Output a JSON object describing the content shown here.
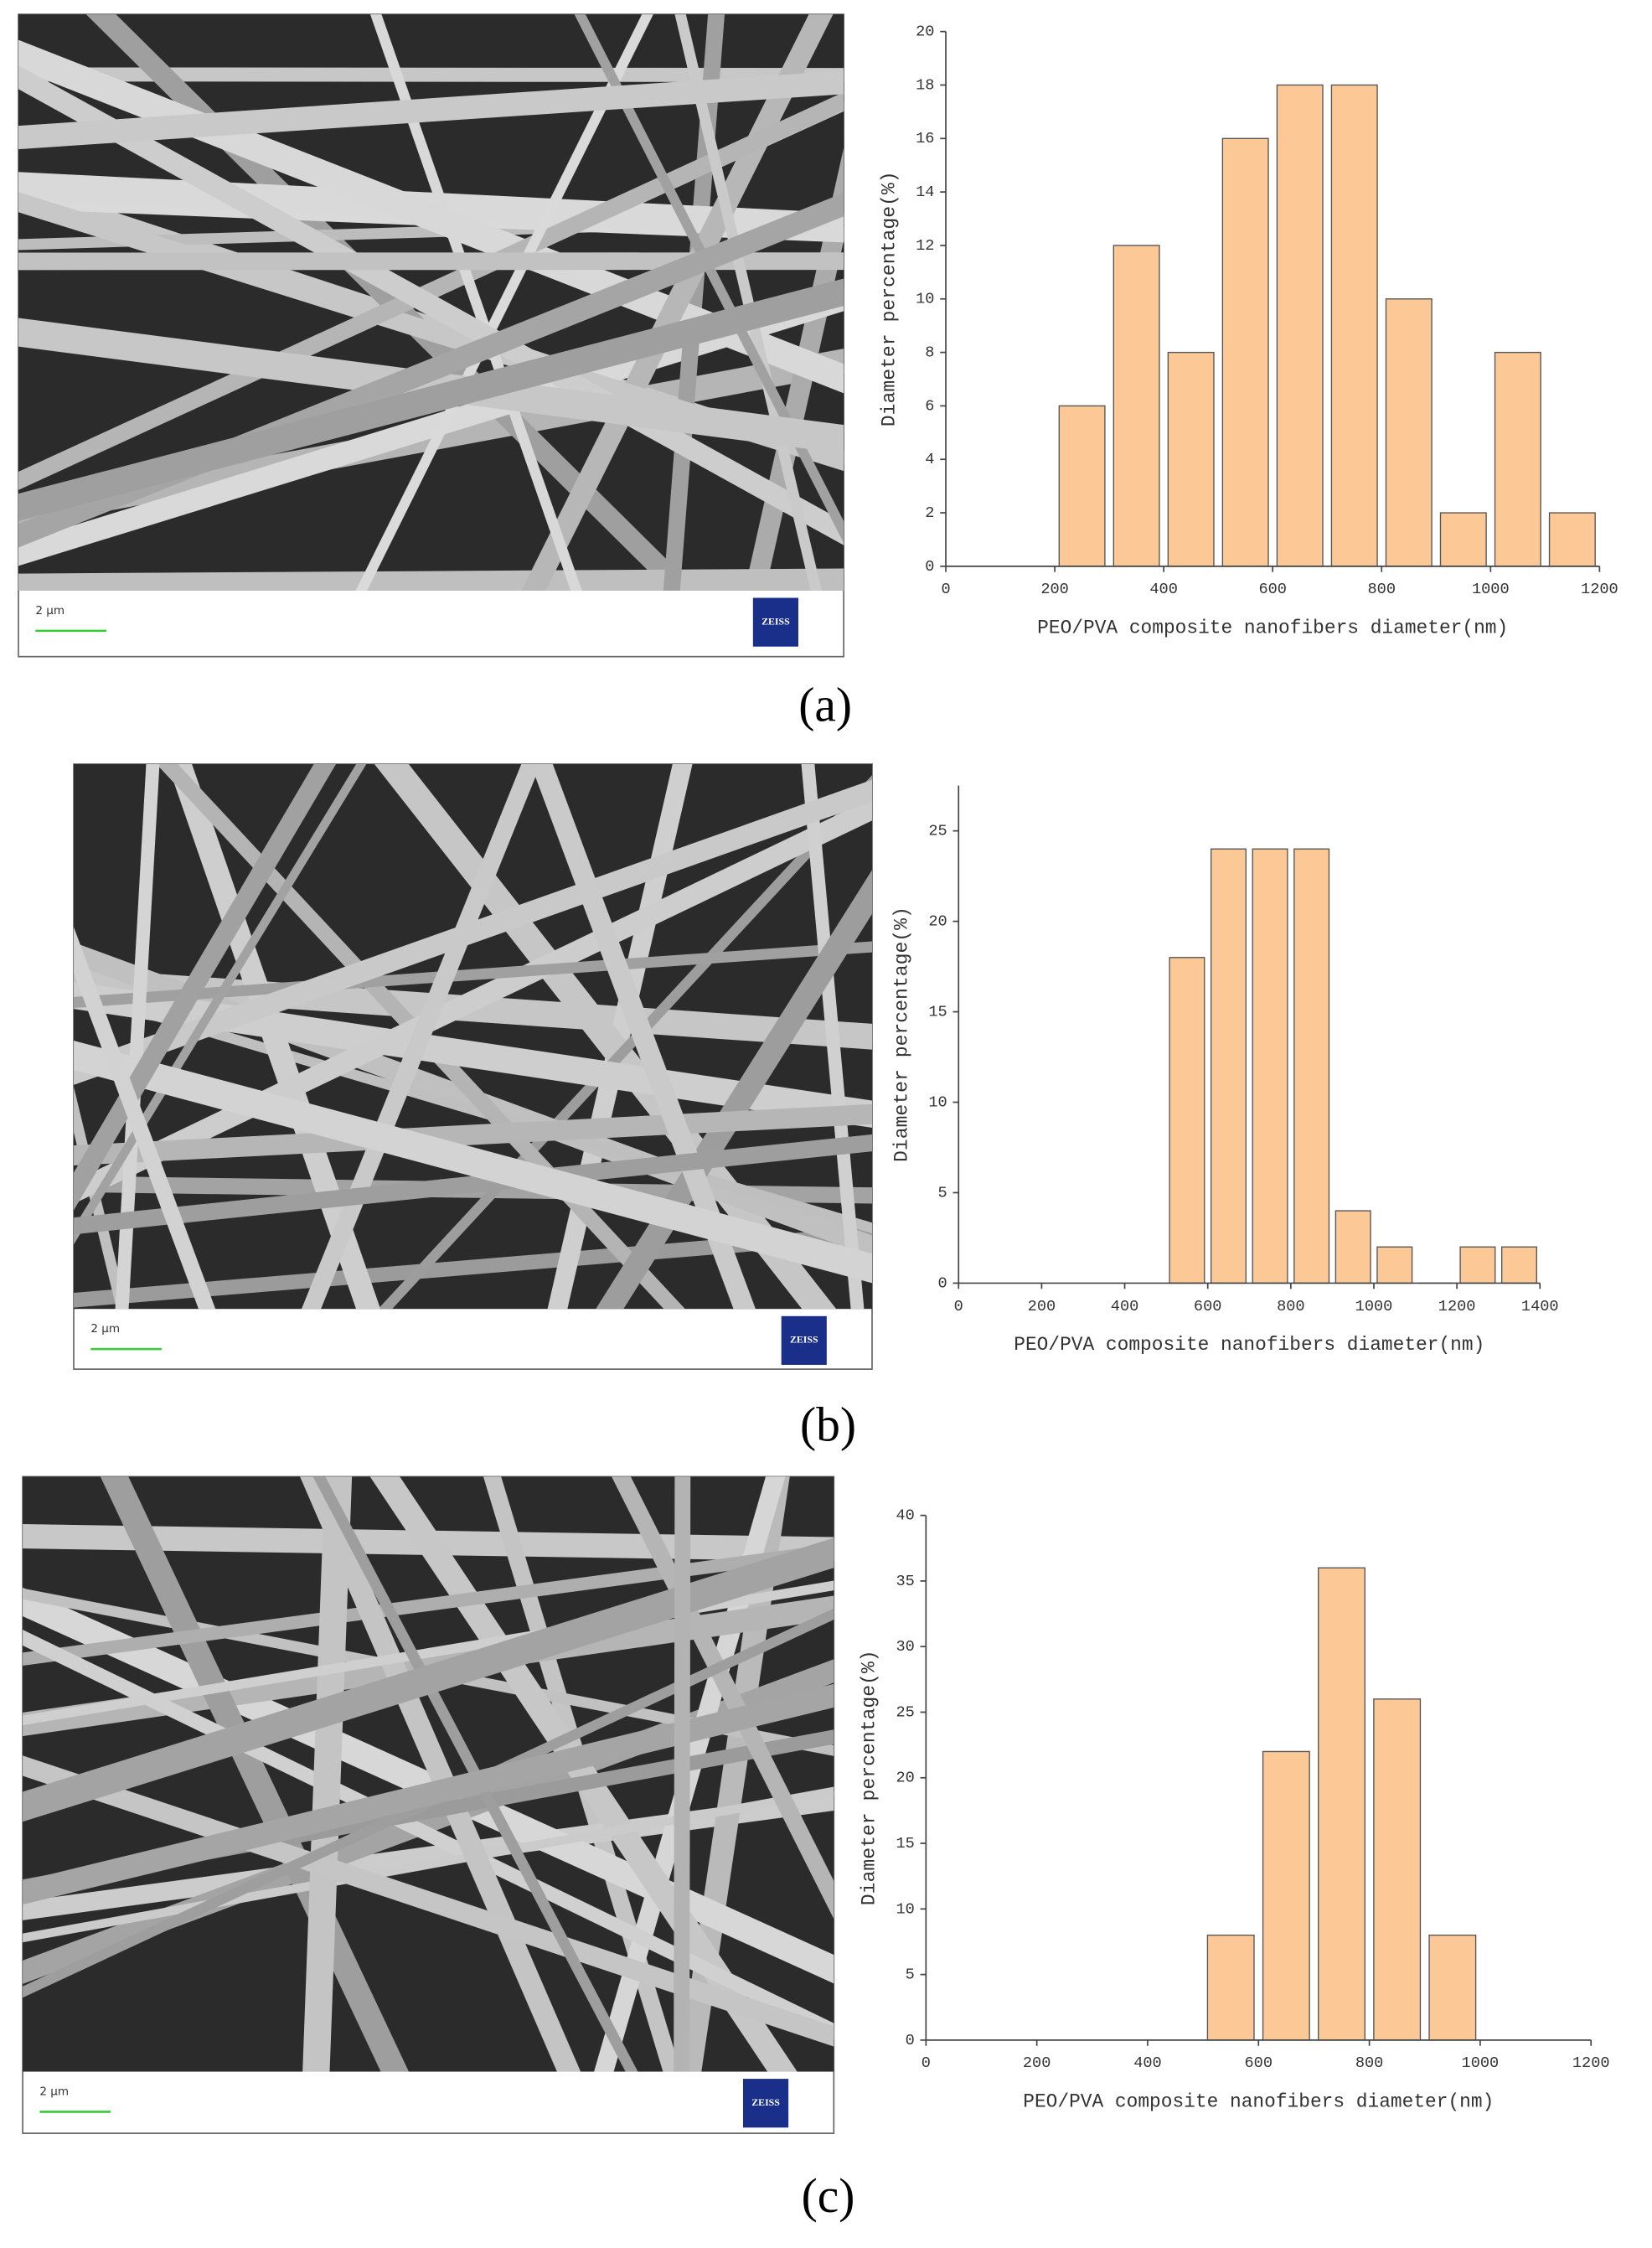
{
  "chart_data": [
    {
      "type": "histogram",
      "panel_label": "(a)",
      "image_scale_label": "2 μm",
      "image_logo": "ZEISS",
      "x_label": "PEO/PVA composite nanofibers diameter(nm)",
      "y_label": "Diameter percentage(%)",
      "bins": [
        200,
        300,
        400,
        500,
        600,
        700,
        800,
        900,
        1000,
        1100,
        1200
      ],
      "values": [
        6,
        12,
        8,
        16,
        18,
        18,
        10,
        2,
        8,
        2
      ],
      "color": "#fcc896",
      "xlim": [
        0,
        1200
      ],
      "xticks": [
        0,
        200,
        400,
        600,
        800,
        1000,
        1200
      ],
      "ylim": [
        0,
        20
      ],
      "yticks": [
        0,
        2,
        4,
        6,
        8,
        10,
        12,
        14,
        16,
        18,
        20
      ]
    },
    {
      "type": "histogram",
      "panel_label": "(b)",
      "image_scale_label": "2 μm",
      "image_logo": "ZEISS",
      "x_label": "PEO/PVA composite nanofibers diameter(nm)",
      "y_label": "Diameter percentage(%)",
      "bins": [
        500,
        600,
        700,
        800,
        900,
        1000,
        1100,
        1200,
        1300,
        1400
      ],
      "values": [
        18,
        24,
        24,
        24,
        4,
        2,
        0,
        2,
        2
      ],
      "color": "#fcc896",
      "xlim": [
        0,
        1400
      ],
      "xticks": [
        0,
        200,
        400,
        600,
        800,
        1000,
        1200,
        1400
      ],
      "ylim": [
        0,
        27.5
      ],
      "yticks": [
        0,
        5,
        10,
        15,
        20,
        25
      ]
    },
    {
      "type": "histogram",
      "panel_label": "(c)",
      "image_scale_label": "2 μm",
      "image_logo": "ZEISS",
      "x_label": "PEO/PVA composite nanofibers diameter(nm)",
      "y_label": "Diameter percentage(%)",
      "bins": [
        500,
        600,
        700,
        800,
        900,
        1000
      ],
      "values": [
        8,
        22,
        36,
        26,
        8
      ],
      "color": "#fcc896",
      "xlim": [
        0,
        1200
      ],
      "xticks": [
        0,
        200,
        400,
        600,
        800,
        1000,
        1200
      ],
      "ylim": [
        0,
        40
      ],
      "yticks": [
        0,
        5,
        10,
        15,
        20,
        25,
        30,
        35,
        40
      ]
    }
  ]
}
